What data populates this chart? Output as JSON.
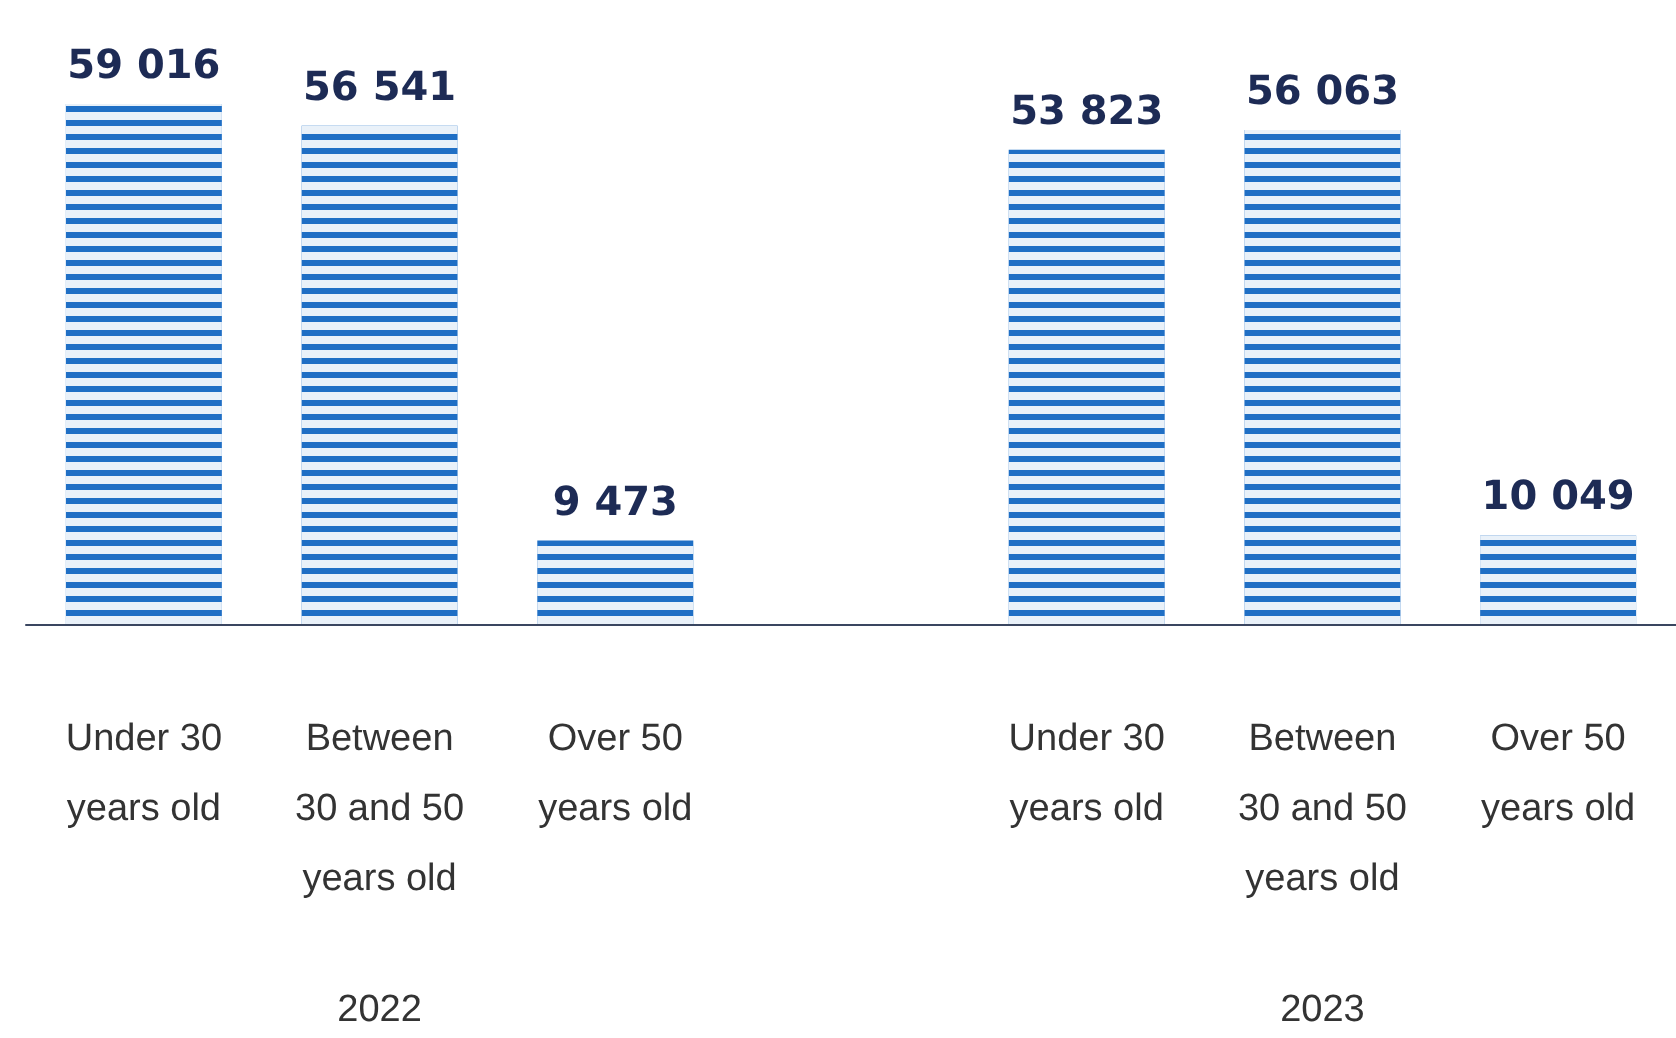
{
  "chart_data": {
    "type": "bar",
    "categories": [
      "Under 30\nyears old",
      "Between\n30 and 50\nyears old",
      "Over 50\nyears old",
      null,
      "Under 30\nyears old",
      "Between\n30 and 50\nyears old",
      "Over 50\nyears old"
    ],
    "values": [
      59016,
      56541,
      9473,
      null,
      53823,
      56063,
      10049
    ],
    "color": "#1f6fc5",
    "data_labels": true,
    "annotations": [
      "2022",
      "2023"
    ]
  }
}
